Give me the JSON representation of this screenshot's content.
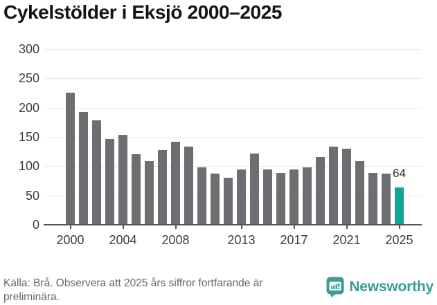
{
  "title": "Cykelstölder i Eksjö 2000–2025",
  "chart_data": {
    "type": "bar",
    "title": "Cykelstölder i Eksjö 2000–2025",
    "xlabel": "",
    "ylabel": "",
    "ylim": [
      0,
      300
    ],
    "y_ticks": [
      0,
      50,
      100,
      150,
      200,
      250,
      300
    ],
    "grid": true,
    "legend": "none",
    "categories": [
      "2000",
      "2001",
      "2002",
      "2003",
      "2004",
      "2005",
      "2006",
      "2007",
      "2008",
      "2009",
      "2010",
      "2011",
      "2012",
      "2013",
      "2014",
      "2015",
      "2016",
      "2017",
      "2018",
      "2019",
      "2020",
      "2021",
      "2022",
      "2023",
      "2024",
      "2025"
    ],
    "values": [
      226,
      193,
      178,
      147,
      154,
      120,
      109,
      128,
      142,
      134,
      98,
      87,
      80,
      95,
      122,
      95,
      89,
      94,
      98,
      116,
      134,
      130,
      109,
      89,
      87,
      64
    ],
    "x_tick_labels": [
      "2000",
      "2004",
      "2008",
      "2013",
      "2017",
      "2021",
      "2025"
    ],
    "bar_color": "#6d6d72",
    "highlight_index": 25,
    "highlight_color": "#0aa79a",
    "value_label": {
      "index": 25,
      "text": "64"
    }
  },
  "footer": {
    "source_text": "Källa: Brå. Observera att 2025 års siffror fortfarande är preliminära."
  },
  "branding": {
    "wordmark": "Newsworthy",
    "color": "#3b9c93",
    "icon": "newsworthy-logo-icon"
  }
}
